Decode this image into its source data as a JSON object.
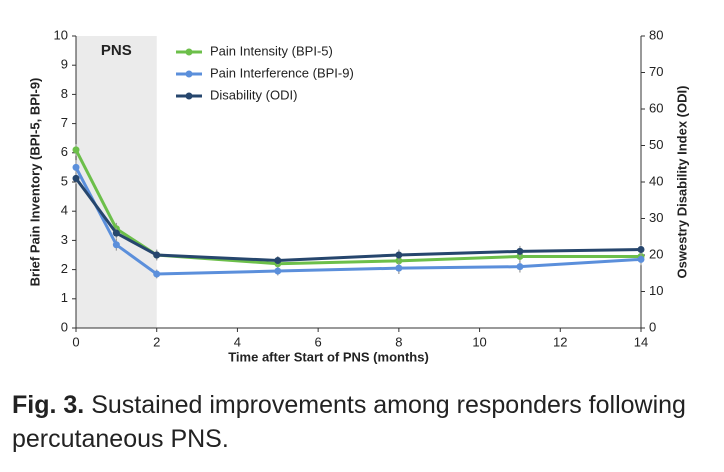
{
  "chart_data": {
    "type": "line",
    "annotation": {
      "label": "PNS",
      "range": [
        0,
        2
      ],
      "color": "#ebebeb"
    },
    "x_label": "Time after Start of PNS (months)",
    "y_label": "Brief Pain Inventory (BPI-5, BPI-9)",
    "y2_label": "Oswestry Disability Index (ODI)",
    "x": [
      0,
      1,
      2,
      5,
      8,
      11,
      14
    ],
    "xlim": [
      0,
      14
    ],
    "xticks": [
      0,
      2,
      4,
      6,
      8,
      10,
      12,
      14
    ],
    "ylim": [
      0,
      10
    ],
    "yticks": [
      0,
      1,
      2,
      3,
      4,
      5,
      6,
      7,
      8,
      9,
      10
    ],
    "y2lim": [
      0,
      80
    ],
    "y2ticks": [
      0,
      10,
      20,
      30,
      40,
      50,
      60,
      70,
      80
    ],
    "legend": "top-left",
    "series": [
      {
        "name": "Pain Intensity (BPI-5)",
        "color": "#6cbf4a",
        "values": [
          6.1,
          3.4,
          2.5,
          2.2,
          2.3,
          2.45,
          2.45
        ],
        "errors": [
          0.2,
          0.2,
          0.15,
          0.15,
          0.15,
          0.2,
          0.15
        ]
      },
      {
        "name": "Pain Interference (BPI-9)",
        "color": "#5b8fdb",
        "values": [
          5.5,
          2.85,
          1.85,
          1.95,
          2.05,
          2.1,
          2.35
        ],
        "errors": [
          0.25,
          0.2,
          0.15,
          0.15,
          0.2,
          0.2,
          0.2
        ]
      },
      {
        "name": "Disability (ODI)",
        "color": "#26466d",
        "axis": "y2",
        "values": [
          41,
          26,
          20,
          18.5,
          20,
          21,
          21.5
        ],
        "errors": [
          1.5,
          1.5,
          1.5,
          1.2,
          1.5,
          1.5,
          1.2
        ]
      }
    ]
  },
  "caption": {
    "label": "Fig. 3.",
    "text": "Sustained improvements among responders following percutaneous PNS."
  }
}
